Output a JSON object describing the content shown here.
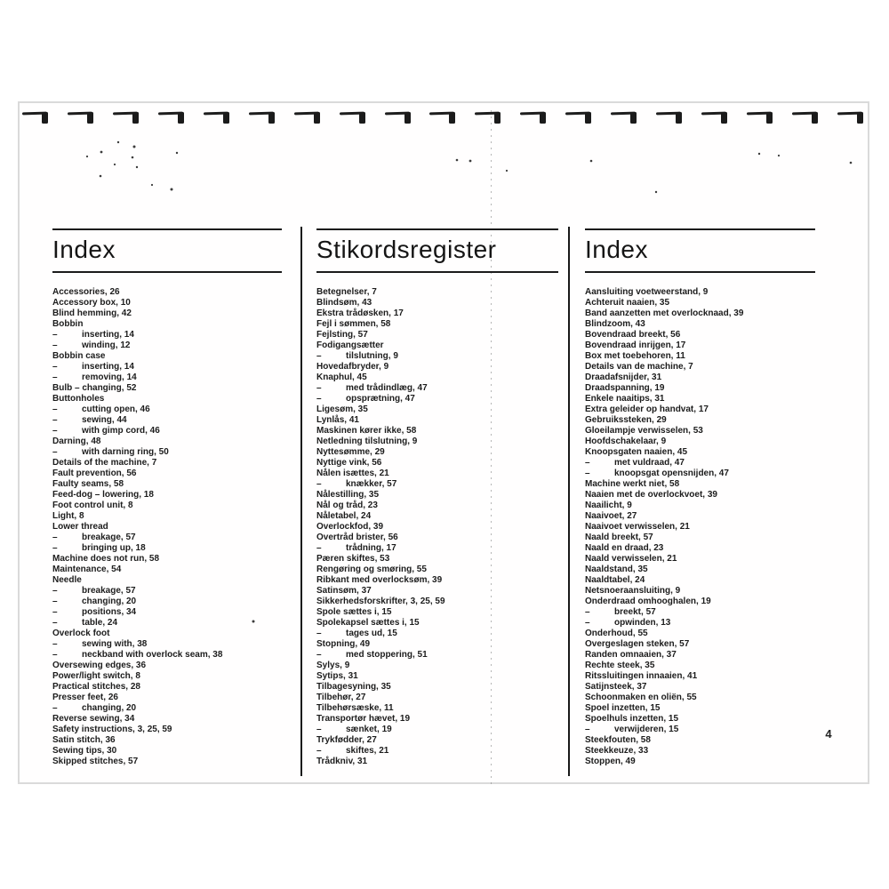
{
  "document": {
    "page_number": "4",
    "binding_hook_count": 19
  },
  "columns": [
    {
      "title": "Index",
      "entries": [
        "Accessories, 26",
        "Accessory box, 10",
        "Blind hemming, 42",
        "Bobbin",
        "– inserting, 14",
        "– winding, 12",
        "Bobbin case",
        "– inserting, 14",
        "– removing, 14",
        "Bulb – changing, 52",
        "Buttonholes",
        "– cutting open, 46",
        "– sewing, 44",
        "– with gimp cord, 46",
        "Darning, 48",
        "– with darning ring, 50",
        "Details of the machine, 7",
        "Fault prevention, 56",
        "Faulty seams, 58",
        "Feed-dog – lowering, 18",
        "Foot control unit, 8",
        "Light, 8",
        "Lower thread",
        "– breakage, 57",
        "– bringing up, 18",
        "Machine does not run, 58",
        "Maintenance, 54",
        "Needle",
        "– breakage, 57",
        "– changing, 20",
        "– positions, 34",
        "– table, 24",
        "Overlock foot",
        "– sewing with, 38",
        "– neckband with overlock seam, 38",
        "Oversewing edges, 36",
        "Power/light switch, 8",
        "Practical stitches, 28",
        "Presser feet, 26",
        "– changing, 20",
        "Reverse sewing, 34",
        "Safety instructions, 3, 25, 59",
        "Satin stitch, 36",
        "Sewing tips, 30",
        "Skipped stitches, 57"
      ]
    },
    {
      "title": "Stikordsregister",
      "entries": [
        "Betegnelser, 7",
        "Blindsøm, 43",
        "Ekstra trådøsken, 17",
        "Fejl i sømmen, 58",
        "Fejlsting, 57",
        "Fodigangsætter",
        "– tilslutning, 9",
        "Hovedafbryder, 9",
        "Knaphul, 45",
        "– med trådindlæg, 47",
        "– opsprætning, 47",
        "Ligesøm, 35",
        "Lynlås, 41",
        "Maskinen kører ikke, 58",
        "Netledning tilslutning, 9",
        "Nyttesømme, 29",
        "Nyttige vink, 56",
        "Nålen isættes, 21",
        "– knækker, 57",
        "Nålestilling, 35",
        "Nål og tråd, 23",
        "Nåletabel, 24",
        "Overlockfod, 39",
        "Overtråd brister, 56",
        "– trådning, 17",
        "Pæren skiftes, 53",
        "Rengøring og smøring, 55",
        "Ribkant med overlocksøm, 39",
        "Satinsøm, 37",
        "Sikkerhedsforskrifter, 3, 25, 59",
        "Spole sættes i, 15",
        "Spolekapsel sættes i, 15",
        "– tages ud, 15",
        "Stopning, 49",
        "– med stoppering, 51",
        "Sylys, 9",
        "Sytips, 31",
        "Tilbagesyning, 35",
        "Tilbehør, 27",
        "Tilbehørsæske, 11",
        "Transportør hævet, 19",
        "– sænket, 19",
        "Trykfødder, 27",
        "– skiftes, 21",
        "Trådkniv, 31"
      ]
    },
    {
      "title": "Index",
      "entries": [
        "Aansluiting voetweerstand, 9",
        "Achteruit naaien, 35",
        "Band aanzetten met overlocknaad, 39",
        "Blindzoom, 43",
        "Bovendraad breekt, 56",
        "Bovendraad inrijgen, 17",
        "Box met toebehoren, 11",
        "Details van de machine, 7",
        "Draadafsnijder, 31",
        "Draadspanning, 19",
        "Enkele naaitips, 31",
        "Extra geleider op handvat, 17",
        "Gebruikssteken, 29",
        "Gloeilampje verwisselen, 53",
        "Hoofdschakelaar, 9",
        "Knoopsgaten naaien, 45",
        "– met vuldraad, 47",
        "– knoopsgat opensnijden, 47",
        "Machine werkt niet, 58",
        "Naaien met de overlockvoet, 39",
        "Naailicht, 9",
        "Naaivoet, 27",
        "Naaivoet verwisselen, 21",
        "Naald breekt, 57",
        "Naald en draad, 23",
        "Naald verwisselen, 21",
        "Naaldstand, 35",
        "Naaldtabel, 24",
        "Netsnoeraansluiting, 9",
        "Onderdraad omhooghalen, 19",
        "– breekt, 57",
        "– opwinden, 13",
        "Onderhoud, 55",
        "Overgeslagen steken, 57",
        "Randen omnaaien, 37",
        "Rechte steek, 35",
        "Ritssluitingen innaaien, 41",
        "Satijnsteek, 37",
        "Schoonmaken en oliën, 55",
        "Spoel inzetten, 15",
        "Spoelhuls inzetten, 15",
        "– verwijderen, 15",
        "Steekfouten, 58",
        "Steekkeuze, 33",
        "Stoppen, 49"
      ]
    }
  ]
}
